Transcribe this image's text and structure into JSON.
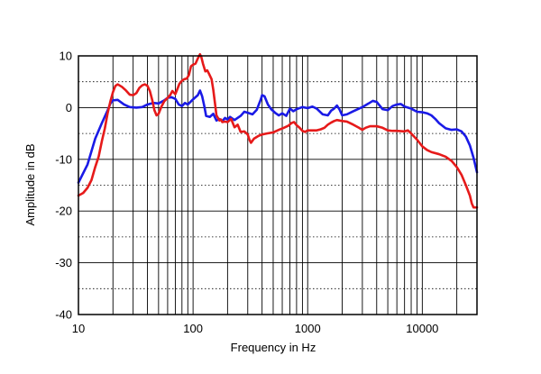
{
  "chart_data": {
    "type": "line",
    "title": "",
    "xlabel": "Frequency in Hz",
    "ylabel": "Amplitude in dB",
    "xscale": "log",
    "xlim": [
      10,
      30000
    ],
    "ylim": [
      -40,
      10
    ],
    "x_tick_labels": [
      "10",
      "100",
      "1000",
      "10000"
    ],
    "y_tick_labels": [
      "10",
      "0",
      "-10",
      "-20",
      "-30",
      "-40"
    ],
    "grid": {
      "major": "solid",
      "minor": "dotted"
    },
    "legend": "none",
    "series": [
      {
        "color": "#1a1ae6",
        "points": [
          [
            10,
            -14.5
          ],
          [
            12,
            -11
          ],
          [
            14,
            -6
          ],
          [
            16,
            -3
          ],
          [
            18,
            -0.5
          ],
          [
            19,
            0.8
          ],
          [
            20,
            1.4
          ],
          [
            22,
            1.5
          ],
          [
            25,
            0.6
          ],
          [
            28,
            0.1
          ],
          [
            32,
            0
          ],
          [
            36,
            0.1
          ],
          [
            40,
            0.6
          ],
          [
            45,
            0.9
          ],
          [
            50,
            0.8
          ],
          [
            56,
            1.4
          ],
          [
            60,
            1.9
          ],
          [
            65,
            2
          ],
          [
            70,
            1.7
          ],
          [
            75,
            0.6
          ],
          [
            80,
            0.3
          ],
          [
            85,
            0.9
          ],
          [
            90,
            0.6
          ],
          [
            100,
            1.6
          ],
          [
            110,
            2.4
          ],
          [
            115,
            3.3
          ],
          [
            120,
            2.2
          ],
          [
            125,
            0.4
          ],
          [
            130,
            -1.6
          ],
          [
            140,
            -1.8
          ],
          [
            150,
            -1.2
          ],
          [
            160,
            -2.5
          ],
          [
            170,
            -2.2
          ],
          [
            180,
            -2.6
          ],
          [
            190,
            -2
          ],
          [
            200,
            -2.3
          ],
          [
            210,
            -1.8
          ],
          [
            230,
            -2.4
          ],
          [
            260,
            -1.6
          ],
          [
            280,
            -0.8
          ],
          [
            300,
            -1
          ],
          [
            330,
            -1.3
          ],
          [
            360,
            -0.4
          ],
          [
            390,
            1.6
          ],
          [
            400,
            2.4
          ],
          [
            420,
            2.2
          ],
          [
            450,
            0.6
          ],
          [
            480,
            -0.3
          ],
          [
            520,
            -1
          ],
          [
            560,
            -1.5
          ],
          [
            600,
            -1.1
          ],
          [
            650,
            -1.6
          ],
          [
            700,
            -0.2
          ],
          [
            750,
            -0.7
          ],
          [
            800,
            -0.3
          ],
          [
            900,
            0.1
          ],
          [
            1000,
            -0.1
          ],
          [
            1100,
            0.2
          ],
          [
            1200,
            -0.2
          ],
          [
            1350,
            -1.3
          ],
          [
            1500,
            -1.5
          ],
          [
            1600,
            -0.6
          ],
          [
            1700,
            -0.2
          ],
          [
            1800,
            0.4
          ],
          [
            1900,
            -0.4
          ],
          [
            2000,
            -1.5
          ],
          [
            2200,
            -1.3
          ],
          [
            2500,
            -0.7
          ],
          [
            3000,
            0.1
          ],
          [
            3400,
            0.8
          ],
          [
            3700,
            1.3
          ],
          [
            4000,
            1.1
          ],
          [
            4500,
            -0.3
          ],
          [
            5000,
            -0.5
          ],
          [
            5500,
            0.3
          ],
          [
            6000,
            0.6
          ],
          [
            6500,
            0.7
          ],
          [
            7000,
            0.2
          ],
          [
            8000,
            -0.2
          ],
          [
            9000,
            -0.8
          ],
          [
            10000,
            -0.9
          ],
          [
            11000,
            -1.1
          ],
          [
            12000,
            -1.5
          ],
          [
            13000,
            -2.2
          ],
          [
            14000,
            -3
          ],
          [
            16000,
            -4
          ],
          [
            18000,
            -4.3
          ],
          [
            20000,
            -4.2
          ],
          [
            22000,
            -4.6
          ],
          [
            24000,
            -5.6
          ],
          [
            26000,
            -7.3
          ],
          [
            28000,
            -9.7
          ],
          [
            30000,
            -12.5
          ]
        ]
      },
      {
        "color": "#e61a1a",
        "points": [
          [
            10,
            -17
          ],
          [
            11,
            -16.5
          ],
          [
            12,
            -15.5
          ],
          [
            13,
            -14
          ],
          [
            14,
            -11.5
          ],
          [
            15,
            -9.5
          ],
          [
            16,
            -6.5
          ],
          [
            17,
            -4
          ],
          [
            18,
            -1
          ],
          [
            19,
            1.2
          ],
          [
            20,
            3
          ],
          [
            21,
            4.2
          ],
          [
            22,
            4.5
          ],
          [
            24,
            4
          ],
          [
            26,
            3.3
          ],
          [
            28,
            2.5
          ],
          [
            30,
            2.4
          ],
          [
            32,
            2.8
          ],
          [
            34,
            3.8
          ],
          [
            36,
            4.3
          ],
          [
            38,
            4.5
          ],
          [
            40,
            4.2
          ],
          [
            42,
            3.2
          ],
          [
            44,
            1.5
          ],
          [
            46,
            -0.5
          ],
          [
            48,
            -1.5
          ],
          [
            50,
            -1.2
          ],
          [
            53,
            0.2
          ],
          [
            56,
            1.2
          ],
          [
            60,
            1.9
          ],
          [
            63,
            2.4
          ],
          [
            66,
            3.2
          ],
          [
            70,
            2.6
          ],
          [
            73,
            3.6
          ],
          [
            76,
            4.6
          ],
          [
            80,
            5.2
          ],
          [
            84,
            5.5
          ],
          [
            88,
            5.6
          ],
          [
            92,
            6.3
          ],
          [
            96,
            8
          ],
          [
            100,
            8.3
          ],
          [
            105,
            8.5
          ],
          [
            110,
            9.5
          ],
          [
            115,
            10.3
          ],
          [
            118,
            9.8
          ],
          [
            122,
            8.5
          ],
          [
            128,
            7
          ],
          [
            133,
            7.2
          ],
          [
            138,
            6.5
          ],
          [
            145,
            5.5
          ],
          [
            150,
            3.5
          ],
          [
            155,
            1
          ],
          [
            160,
            -1.5
          ],
          [
            165,
            -2
          ],
          [
            170,
            -2.5
          ],
          [
            175,
            -2.3
          ],
          [
            180,
            -2.8
          ],
          [
            190,
            -2.7
          ],
          [
            200,
            -2.8
          ],
          [
            215,
            -2.2
          ],
          [
            230,
            -3.8
          ],
          [
            245,
            -3.3
          ],
          [
            260,
            -4.7
          ],
          [
            280,
            -4.6
          ],
          [
            300,
            -5.2
          ],
          [
            310,
            -6.2
          ],
          [
            320,
            -6.8
          ],
          [
            340,
            -6
          ],
          [
            370,
            -5.5
          ],
          [
            400,
            -5.2
          ],
          [
            440,
            -5
          ],
          [
            500,
            -4.8
          ],
          [
            560,
            -4.3
          ],
          [
            620,
            -3.9
          ],
          [
            680,
            -3.5
          ],
          [
            720,
            -3
          ],
          [
            760,
            -2.8
          ],
          [
            800,
            -3.4
          ],
          [
            850,
            -3.9
          ],
          [
            900,
            -4.5
          ],
          [
            950,
            -4.7
          ],
          [
            1000,
            -4.4
          ],
          [
            1100,
            -4.4
          ],
          [
            1200,
            -4.4
          ],
          [
            1300,
            -4.2
          ],
          [
            1400,
            -3.9
          ],
          [
            1500,
            -3.3
          ],
          [
            1600,
            -2.9
          ],
          [
            1700,
            -2.6
          ],
          [
            1800,
            -2.4
          ],
          [
            2000,
            -2.6
          ],
          [
            2200,
            -2.7
          ],
          [
            2500,
            -3.3
          ],
          [
            2800,
            -3.9
          ],
          [
            3000,
            -4.3
          ],
          [
            3200,
            -3.9
          ],
          [
            3500,
            -3.6
          ],
          [
            4000,
            -3.6
          ],
          [
            4500,
            -3.9
          ],
          [
            5000,
            -4.4
          ],
          [
            5500,
            -4.5
          ],
          [
            6000,
            -4.5
          ],
          [
            7000,
            -4.6
          ],
          [
            7500,
            -4.4
          ],
          [
            8000,
            -5
          ],
          [
            9000,
            -6.2
          ],
          [
            10000,
            -7.5
          ],
          [
            11000,
            -8.2
          ],
          [
            12000,
            -8.6
          ],
          [
            14000,
            -9
          ],
          [
            16000,
            -9.5
          ],
          [
            18000,
            -10.3
          ],
          [
            20000,
            -11.5
          ],
          [
            22000,
            -13
          ],
          [
            24000,
            -15
          ],
          [
            26000,
            -17
          ],
          [
            27000,
            -18.5
          ],
          [
            28000,
            -19.3
          ],
          [
            30000,
            -19.3
          ]
        ]
      }
    ]
  }
}
